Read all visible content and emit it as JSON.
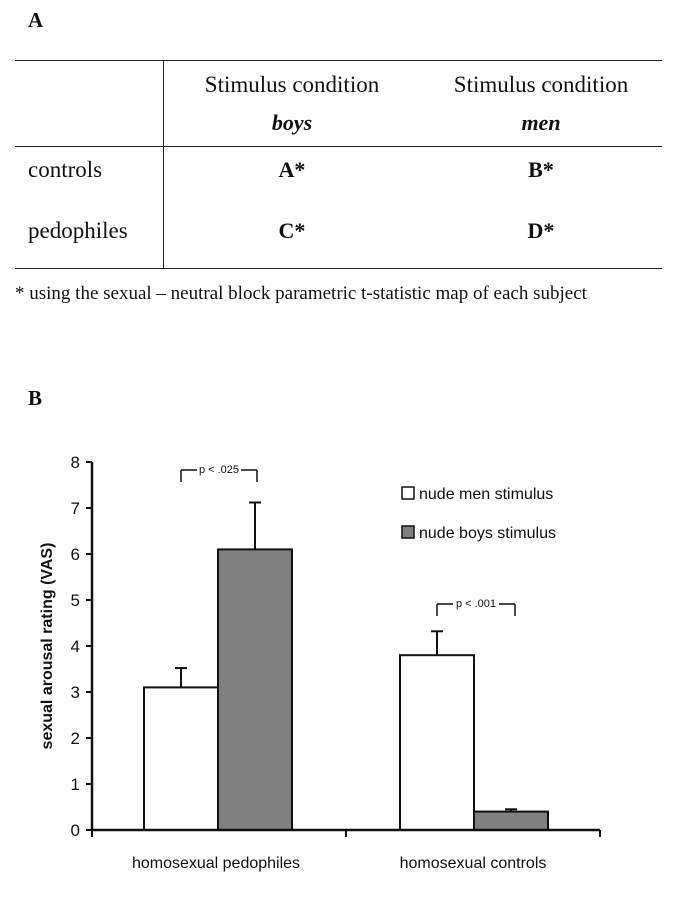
{
  "panel_a": {
    "label": "A",
    "header": {
      "col1_line1": "Stimulus condition",
      "col1_line2": "boys",
      "col2_line1": "Stimulus condition",
      "col2_line2": "men"
    },
    "rows": [
      {
        "label": "controls",
        "col1": "A*",
        "col2": "B*"
      },
      {
        "label": "pedophiles",
        "col1": "C*",
        "col2": "D*"
      }
    ],
    "footnote": "* using the sexual – neutral block parametric t-statistic map of each subject"
  },
  "panel_b": {
    "label": "B"
  },
  "chart_data": {
    "type": "bar",
    "title": "",
    "xlabel": "",
    "ylabel": "sexual arousal rating (VAS)",
    "ylim": [
      0,
      8
    ],
    "yticks": [
      "0",
      "1",
      "2",
      "3",
      "4",
      "5",
      "6",
      "7",
      "8"
    ],
    "categories": [
      "homosexual pedophiles",
      "homosexual controls"
    ],
    "series": [
      {
        "name": "nude men stimulus",
        "values": [
          3.1,
          3.8
        ],
        "errors": [
          0.42,
          0.52
        ],
        "color": "#ffffff"
      },
      {
        "name": "nude boys stimulus",
        "values": [
          6.1,
          0.4
        ],
        "errors": [
          1.02,
          0.05
        ],
        "color": "#808080"
      }
    ],
    "legend_position": "top-right",
    "annotations": [
      {
        "text": "p < .025",
        "category": "homosexual pedophiles"
      },
      {
        "text": "p < .001",
        "category": "homosexual controls"
      }
    ]
  }
}
